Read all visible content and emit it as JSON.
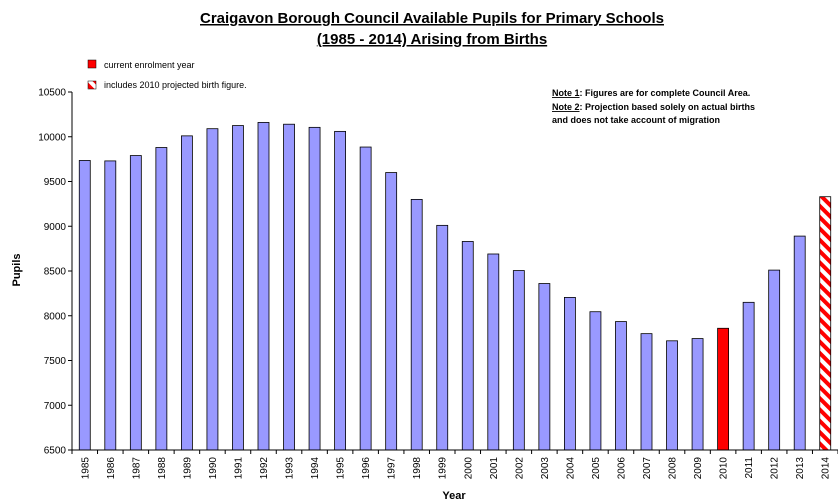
{
  "chart_data": {
    "type": "bar",
    "title_line1": "Craigavon Borough Council Available Pupils for Primary Schools",
    "title_line2": "(1985 - 2014) Arising from Births",
    "xlabel": "Year",
    "ylabel": "Pupils",
    "ylim": [
      6500,
      10500
    ],
    "ytick_step": 500,
    "grid": false,
    "categories": [
      "1985",
      "1986",
      "1987",
      "1988",
      "1989",
      "1990",
      "1991",
      "1992",
      "1993",
      "1994",
      "1995",
      "1996",
      "1997",
      "1998",
      "1999",
      "2000",
      "2001",
      "2002",
      "2003",
      "2004",
      "2005",
      "2006",
      "2007",
      "2008",
      "2009",
      "2010",
      "2011",
      "2012",
      "2013",
      "2014"
    ],
    "values": [
      9735,
      9730,
      9790,
      9880,
      10010,
      10090,
      10125,
      10160,
      10140,
      10105,
      10060,
      9885,
      9600,
      9300,
      9010,
      8830,
      8690,
      8505,
      8360,
      8205,
      8045,
      7935,
      7800,
      7720,
      7745,
      7860,
      8150,
      8510,
      8890,
      9330
    ],
    "legend": [
      {
        "label": "current enrolment year",
        "style": "solid",
        "color": "#ff0000",
        "category": "2010"
      },
      {
        "label": "includes 2010 projected birth figure.",
        "style": "hatched",
        "color": "#ff0000",
        "category": "2014"
      }
    ],
    "notes": [
      {
        "label": "Note 1",
        "text": ": Figures are for complete Council Area."
      },
      {
        "label": "Note 2",
        "text": ": Projection based solely on actual births"
      },
      {
        "label": "",
        "text": "and does not take account of migration"
      }
    ],
    "colors": {
      "bar": "#9999ff",
      "highlight": "#ff0000",
      "outline": "#000000"
    }
  }
}
